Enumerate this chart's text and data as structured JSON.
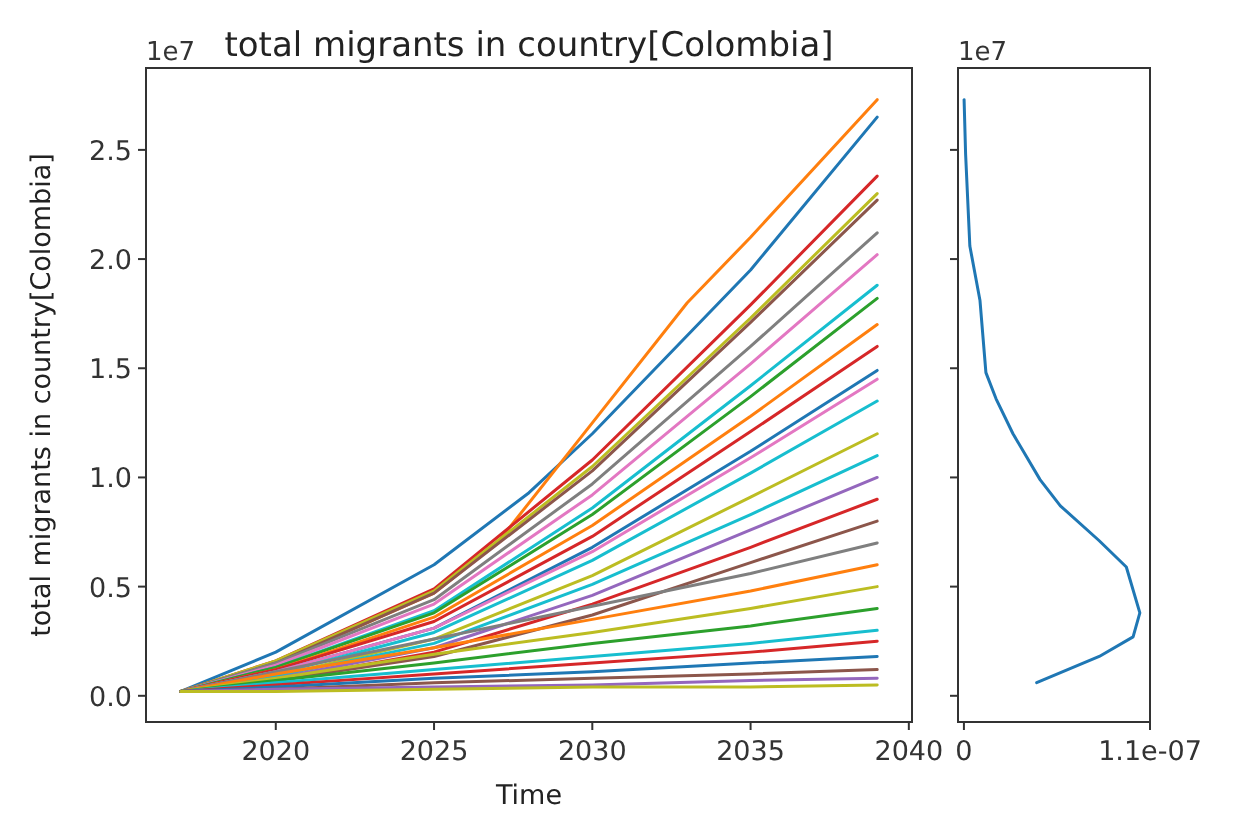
{
  "chart_data": [
    {
      "type": "line",
      "title": "total migrants in country[Colombia]",
      "xlabel": "Time",
      "ylabel": "total migrants in country[Colombia]",
      "annotations": [
        "1e7"
      ],
      "xlim": [
        2015.9,
        2040.1
      ],
      "xticks": [
        2020,
        2025,
        2030,
        2035,
        2040
      ],
      "ylim": [
        -0.12,
        2.875
      ],
      "yticks": [
        {
          "value": 0,
          "label": "0.0"
        },
        0.5,
        {
          "value": 1,
          "label": "1.0"
        },
        1.5,
        {
          "value": 2,
          "label": "2.0"
        },
        2.5
      ],
      "x": [
        2017,
        2020,
        2025,
        2030,
        2035,
        2039
      ],
      "series": [
        {
          "color": "#1f77b4",
          "x": [
            2017,
            2020,
            2025,
            2028,
            2030,
            2035,
            2039
          ],
          "values": [
            0.02,
            0.2,
            0.6,
            0.93,
            1.2,
            1.95,
            2.65
          ]
        },
        {
          "color": "#ff7f0e",
          "x": [
            2017,
            2020,
            2025,
            2027,
            2030,
            2033,
            2035,
            2039
          ],
          "values": [
            0.02,
            0.15,
            0.47,
            0.7,
            1.25,
            1.8,
            2.1,
            2.73
          ]
        },
        {
          "color": "#d62728",
          "values": [
            0.02,
            0.16,
            0.49,
            1.08,
            1.79,
            2.38
          ]
        },
        {
          "color": "#bcbd22",
          "values": [
            0.02,
            0.16,
            0.48,
            1.05,
            1.73,
            2.3
          ]
        },
        {
          "color": "#8c564b",
          "values": [
            0.02,
            0.15,
            0.47,
            1.03,
            1.71,
            2.27
          ]
        },
        {
          "color": "#7f7f7f",
          "values": [
            0.02,
            0.15,
            0.44,
            0.97,
            1.6,
            2.12
          ]
        },
        {
          "color": "#e377c2",
          "values": [
            0.02,
            0.14,
            0.42,
            0.92,
            1.52,
            2.02
          ]
        },
        {
          "color": "#17becf",
          "values": [
            0.02,
            0.13,
            0.39,
            0.86,
            1.42,
            1.88
          ]
        },
        {
          "color": "#2ca02c",
          "values": [
            0.02,
            0.13,
            0.38,
            0.83,
            1.37,
            1.82
          ]
        },
        {
          "color": "#ff7f0e",
          "values": [
            0.02,
            0.12,
            0.36,
            0.78,
            1.28,
            1.7
          ]
        },
        {
          "color": "#d62728",
          "values": [
            0.02,
            0.12,
            0.34,
            0.73,
            1.21,
            1.6
          ]
        },
        {
          "color": "#1f77b4",
          "values": [
            0.02,
            0.11,
            0.31,
            0.68,
            1.12,
            1.49
          ]
        },
        {
          "color": "#e377c2",
          "values": [
            0.02,
            0.11,
            0.31,
            0.66,
            1.09,
            1.45
          ]
        },
        {
          "color": "#17becf",
          "values": [
            0.02,
            0.1,
            0.29,
            0.62,
            1.02,
            1.35
          ]
        },
        {
          "color": "#bcbd22",
          "values": [
            0.02,
            0.09,
            0.26,
            0.55,
            0.91,
            1.2
          ]
        },
        {
          "color": "#17becf",
          "values": [
            0.02,
            0.09,
            0.24,
            0.51,
            0.83,
            1.1
          ]
        },
        {
          "color": "#9467bd",
          "values": [
            0.02,
            0.08,
            0.22,
            0.46,
            0.76,
            1.0
          ]
        },
        {
          "color": "#d62728",
          "values": [
            0.02,
            0.07,
            0.2,
            0.42,
            0.68,
            0.9
          ]
        },
        {
          "color": "#8c564b",
          "values": [
            0.02,
            0.07,
            0.18,
            0.37,
            0.61,
            0.8
          ]
        },
        {
          "color": "#7f7f7f",
          "values": [
            0.02,
            0.11,
            0.26,
            0.41,
            0.56,
            0.7
          ]
        },
        {
          "color": "#ff7f0e",
          "values": [
            0.02,
            0.1,
            0.22,
            0.35,
            0.48,
            0.6
          ]
        },
        {
          "color": "#bcbd22",
          "values": [
            0.02,
            0.08,
            0.19,
            0.29,
            0.4,
            0.5
          ]
        },
        {
          "color": "#2ca02c",
          "values": [
            0.02,
            0.07,
            0.15,
            0.24,
            0.32,
            0.4
          ]
        },
        {
          "color": "#17becf",
          "values": [
            0.02,
            0.06,
            0.12,
            0.18,
            0.24,
            0.3
          ]
        },
        {
          "color": "#d62728",
          "values": [
            0.02,
            0.05,
            0.1,
            0.15,
            0.2,
            0.25
          ]
        },
        {
          "color": "#1f77b4",
          "values": [
            0.02,
            0.04,
            0.08,
            0.11,
            0.15,
            0.18
          ]
        },
        {
          "color": "#8c564b",
          "values": [
            0.02,
            0.03,
            0.06,
            0.08,
            0.1,
            0.12
          ]
        },
        {
          "color": "#9467bd",
          "values": [
            0.02,
            0.03,
            0.04,
            0.05,
            0.07,
            0.08
          ]
        },
        {
          "color": "#bcbd22",
          "values": [
            0.02,
            0.02,
            0.03,
            0.04,
            0.04,
            0.05
          ]
        }
      ]
    },
    {
      "type": "line",
      "annotations": [
        "1e7"
      ],
      "xlim": [
        -3.5e-09,
        1.1e-07
      ],
      "xticks": [
        0,
        {
          "value": 1.1e-07,
          "label": "1.1e-07"
        }
      ],
      "ylim": [
        -0.12,
        2.875
      ],
      "yticks": [
        0,
        0.5,
        1,
        1.5,
        2,
        2.5
      ],
      "tick_labels": "x",
      "series": [
        {
          "color": "#1f77b4",
          "x": [
            1e-10,
            1e-09,
            3.5e-09,
            9.5e-09,
            1.3e-08,
            1.9e-08,
            2.9e-08,
            4.5e-08,
            5.7e-08,
            8e-08,
            9.6e-08,
            1.04e-07,
            1e-07,
            8e-08,
            4.3e-08
          ],
          "values": [
            2.73,
            2.48,
            2.06,
            1.81,
            1.48,
            1.36,
            1.2,
            0.99,
            0.87,
            0.71,
            0.59,
            0.38,
            0.27,
            0.18,
            0.06
          ]
        }
      ]
    }
  ]
}
